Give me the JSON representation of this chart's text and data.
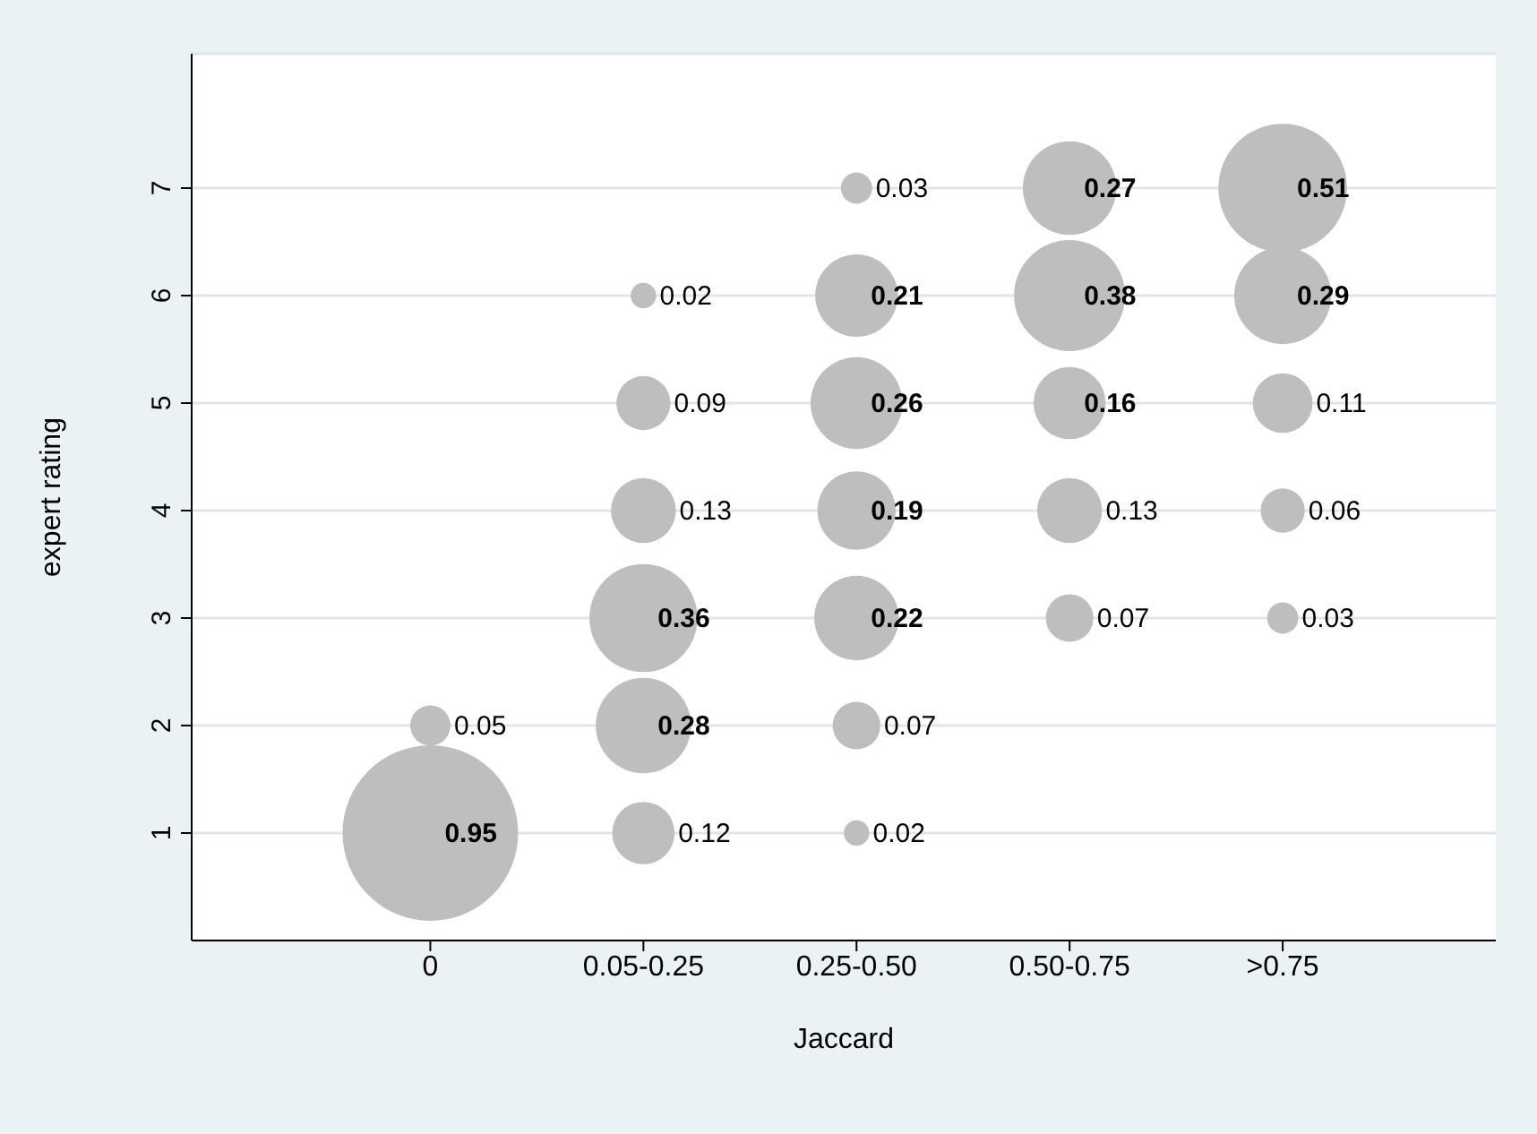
{
  "chart_data": {
    "type": "bubble",
    "xlabel": "Jaccard",
    "ylabel": "expert rating",
    "categories": [
      "0",
      "0.05-0.25",
      "0.25-0.50",
      "0.50-0.75",
      ">0.75"
    ],
    "ylim": [
      0,
      8.25
    ],
    "yticks": [
      1,
      2,
      3,
      4,
      5,
      6,
      7
    ],
    "grid": "y",
    "series": [
      {
        "color": "#bebebe",
        "x": [
          "0",
          "0",
          "0.05-0.25",
          "0.05-0.25",
          "0.05-0.25",
          "0.05-0.25",
          "0.05-0.25",
          "0.05-0.25",
          "0.25-0.50",
          "0.25-0.50",
          "0.25-0.50",
          "0.25-0.50",
          "0.25-0.50",
          "0.25-0.50",
          "0.25-0.50",
          "0.50-0.75",
          "0.50-0.75",
          "0.50-0.75",
          "0.50-0.75",
          "0.50-0.75",
          ">0.75",
          ">0.75",
          ">0.75",
          ">0.75",
          ">0.75"
        ],
        "values": [
          1,
          2,
          1,
          2,
          3,
          4,
          5,
          6,
          1,
          2,
          3,
          4,
          5,
          6,
          7,
          3,
          4,
          5,
          6,
          7,
          3,
          4,
          5,
          6,
          7
        ],
        "sizes": [
          0.95,
          0.05,
          0.12,
          0.28,
          0.36,
          0.13,
          0.09,
          0.02,
          0.02,
          0.07,
          0.22,
          0.19,
          0.26,
          0.21,
          0.03,
          0.07,
          0.13,
          0.16,
          0.38,
          0.27,
          0.03,
          0.06,
          0.11,
          0.29,
          0.51
        ],
        "value_labels": [
          "0.95",
          "0.05",
          "0.12",
          "0.28",
          "0.36",
          "0.13",
          "0.09",
          "0.02",
          "0.02",
          "0.07",
          "0.22",
          "0.19",
          "0.26",
          "0.21",
          "0.03",
          "0.07",
          "0.13",
          "0.16",
          "0.38",
          "0.27",
          "0.03",
          "0.06",
          "0.11",
          "0.29",
          "0.51"
        ]
      }
    ]
  }
}
